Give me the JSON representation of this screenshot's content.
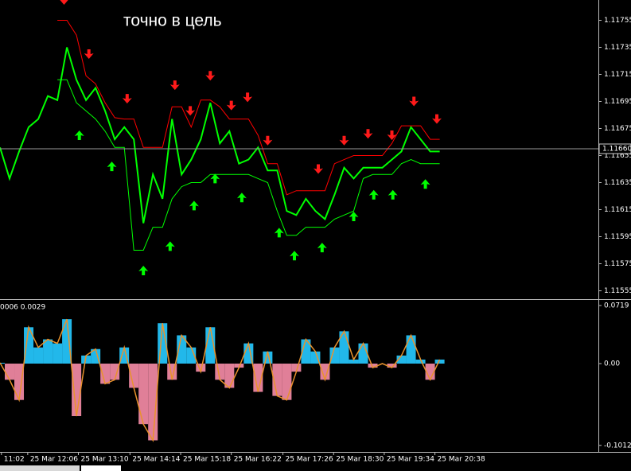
{
  "chart_data": [
    {
      "type": "line",
      "title": "точно в цель",
      "xlim": [
        0,
        62.6
      ],
      "ylim": [
        1.1155,
        1.1177
      ],
      "yticks": [
        1.11755,
        1.11735,
        1.11715,
        1.11695,
        1.11675,
        1.11655,
        1.11635,
        1.11615,
        1.11595,
        1.11575,
        1.11555
      ],
      "last_price": {
        "value": 1.1166,
        "label": "1.11660"
      },
      "series": [
        {
          "color": "#00ff00",
          "values": [
            1.11661,
            1.11638,
            1.11658,
            1.11676,
            1.11682,
            1.11699,
            1.11696,
            1.11735,
            1.11711,
            1.11696,
            1.11705,
            1.11688,
            1.11667,
            1.11676,
            1.11667,
            1.11605,
            1.11641,
            1.11623,
            1.11682,
            1.11641,
            1.11652,
            1.11667,
            1.11694,
            1.11664,
            1.11673,
            1.11649,
            1.11652,
            1.11661,
            1.11644,
            1.11644,
            1.11614,
            1.11611,
            1.11623,
            1.11614,
            1.11608,
            1.11626,
            1.11646,
            1.11638,
            1.11646,
            1.11646,
            1.11646,
            1.11652,
            1.11658,
            1.11676,
            1.11667,
            1.11658,
            1.11658
          ]
        },
        {
          "color": "#ff0000",
          "values": [
            null,
            null,
            null,
            null,
            null,
            null,
            1.11755,
            1.11755,
            1.11744,
            1.11714,
            1.11708,
            1.11694,
            1.11683,
            1.11682,
            1.11682,
            1.11661,
            1.11661,
            1.11661,
            1.11691,
            1.11691,
            1.11676,
            1.11696,
            1.11696,
            1.11691,
            1.11682,
            1.11682,
            1.11682,
            1.1167,
            1.11649,
            1.11649,
            1.11626,
            1.11629,
            1.11629,
            1.11629,
            1.11629,
            1.11649,
            1.11652,
            1.11655,
            1.11655,
            1.11655,
            1.11655,
            1.11664,
            1.11677,
            1.11677,
            1.11677,
            1.11667,
            1.11667
          ]
        },
        {
          "color": "#00ff00",
          "values": [
            null,
            null,
            null,
            null,
            null,
            null,
            1.11711,
            1.11711,
            1.11694,
            1.11688,
            1.11682,
            1.11673,
            1.11661,
            1.11661,
            1.11585,
            1.11585,
            1.11602,
            1.11602,
            1.11623,
            1.11632,
            1.11635,
            1.11635,
            1.11641,
            1.11641,
            1.11641,
            1.11641,
            1.11641,
            1.11638,
            1.11635,
            1.11614,
            1.11596,
            1.11596,
            1.11602,
            1.11602,
            1.11602,
            1.11608,
            1.11611,
            1.11614,
            1.11638,
            1.11641,
            1.11641,
            1.11641,
            1.11649,
            1.11652,
            1.11649,
            1.11649,
            1.11649
          ]
        }
      ],
      "arrows_down": {
        "color": "#ff1a1a",
        "x": [
          6.7,
          9.3,
          13.3,
          18.3,
          19.9,
          22,
          24.2,
          25.9,
          28,
          33.3,
          36,
          38.5,
          41,
          43.3,
          45.7
        ],
        "values": [
          1.1177,
          1.1173,
          1.11697,
          1.11707,
          1.11688,
          1.11714,
          1.11692,
          1.11698,
          1.11666,
          1.11645,
          1.11666,
          1.11671,
          1.1167,
          1.11695,
          1.11682
        ]
      },
      "arrows_up": {
        "color": "#00ff00",
        "x": [
          8.3,
          11.7,
          15,
          17.8,
          20.3,
          22.5,
          25.3,
          29.2,
          30.8,
          33.7,
          37,
          39.1,
          41.1,
          44.5
        ],
        "values": [
          1.1167,
          1.11647,
          1.1157,
          1.11588,
          1.11618,
          1.11638,
          1.11624,
          1.11598,
          1.11581,
          1.11587,
          1.1161,
          1.11626,
          1.11626,
          1.11634
        ]
      }
    },
    {
      "type": "bar",
      "label": "0006 0.0029",
      "xlim": [
        0,
        62.6
      ],
      "ylim": [
        -0.1093,
        0.0778
      ],
      "yticks": [
        0.0719,
        {
          "value": 0,
          "label": "0.00"
        },
        -0.1012
      ],
      "positive_color": "#22b8ea",
      "negative_color": "#e07f98",
      "edge_color": "#e8922c",
      "values": [
        0.001,
        -0.02,
        -0.045,
        0.045,
        0.02,
        0.03,
        0.025,
        0.055,
        -0.065,
        0.01,
        0.018,
        -0.025,
        -0.02,
        0.02,
        -0.03,
        -0.075,
        -0.095,
        0.05,
        -0.02,
        0.035,
        0.02,
        -0.01,
        0.045,
        -0.02,
        -0.03,
        -0.005,
        0.025,
        -0.035,
        0.015,
        -0.04,
        -0.045,
        -0.01,
        0.03,
        0.015,
        -0.02,
        0.02,
        0.04,
        0.005,
        0.025,
        -0.005,
        0,
        -0.005,
        0.01,
        0.035,
        0.005,
        -0.02,
        0.005
      ],
      "xticks": [
        {
          "value": 0.15,
          "label": "11:02"
        },
        {
          "value": 2.9,
          "label": "25 Mar 12:06"
        },
        {
          "value": 8.2,
          "label": "25 Mar 13:10"
        },
        {
          "value": 13.6,
          "label": "25 Mar 14:14"
        },
        {
          "value": 18.9,
          "label": "25 Mar 15:18"
        },
        {
          "value": 24.2,
          "label": "25 Mar 16:22"
        },
        {
          "value": 29.6,
          "label": "25 Mar 17:26"
        },
        {
          "value": 34.9,
          "label": "25 Mar 18:30"
        },
        {
          "value": 40.2,
          "label": "25 Mar 19:34"
        },
        {
          "value": 45.5,
          "label": "25 Mar 20:38"
        }
      ]
    }
  ]
}
